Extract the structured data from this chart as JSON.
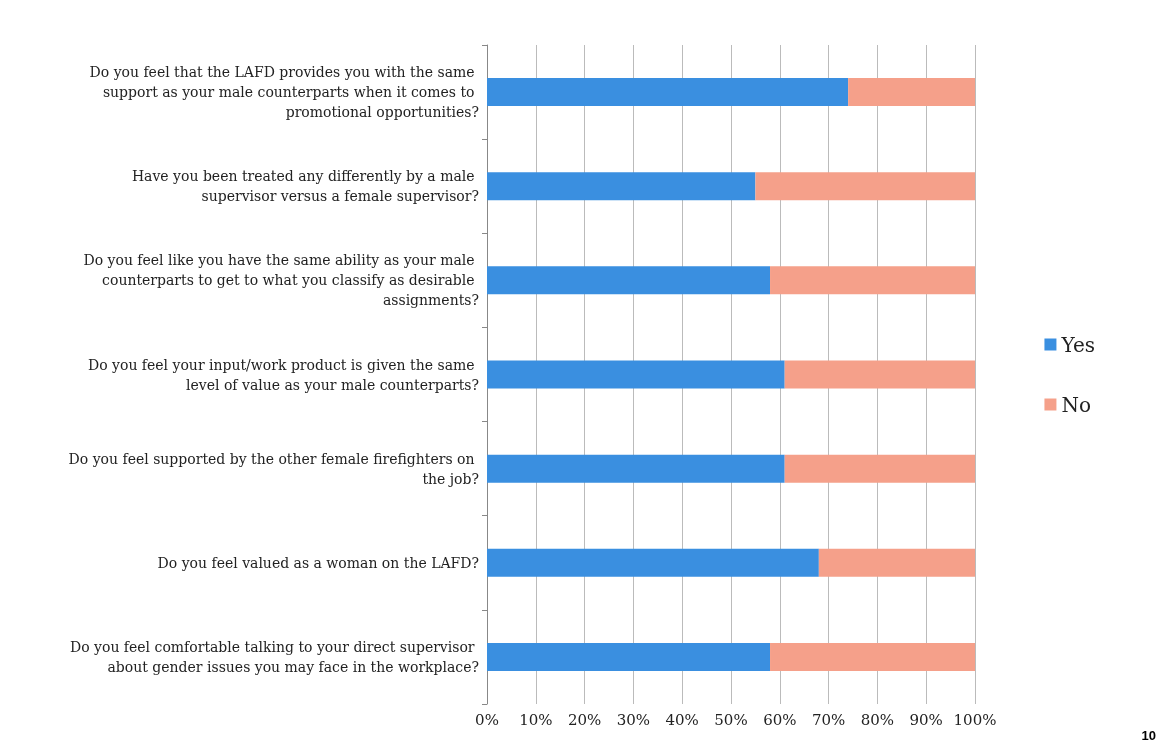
{
  "chart_data": {
    "type": "bar",
    "orientation": "horizontal",
    "stacked": true,
    "categories": [
      "Do you feel that the LAFD provides you with the same support as your male counterparts when it comes to promotional opportunities?",
      "Have you been treated any differently by a male supervisor versus a female supervisor?",
      "Do you feel like you have the same ability as your male counterparts to get to what you classify as desirable assignments?",
      "Do you feel your input/work product is given the same level of value as your male counterparts?",
      "Do you feel supported by the other female firefighters on the job?",
      "Do you feel valued as a woman on the LAFD?",
      "Do you feel comfortable talking to your direct supervisor about gender issues you may face in the workplace?"
    ],
    "series": [
      {
        "name": "Yes",
        "color": "#3a8fe0",
        "values": [
          74,
          55,
          58,
          61,
          61,
          68,
          58
        ]
      },
      {
        "name": "No",
        "color": "#f5a08a",
        "values": [
          26,
          45,
          42,
          39,
          39,
          32,
          42
        ]
      }
    ],
    "xlim": [
      0,
      100
    ],
    "xticks": [
      {
        "value": 0,
        "label": "0%"
      },
      {
        "value": 10,
        "label": "10%"
      },
      {
        "value": 20,
        "label": "20%"
      },
      {
        "value": 30,
        "label": "30%"
      },
      {
        "value": 40,
        "label": "40%"
      },
      {
        "value": 50,
        "label": "50%"
      },
      {
        "value": 60,
        "label": "60%"
      },
      {
        "value": 70,
        "label": "70%"
      },
      {
        "value": 80,
        "label": "80%"
      },
      {
        "value": 90,
        "label": "90%"
      },
      {
        "value": 100,
        "label": "100%"
      }
    ],
    "grid": "x",
    "legend": "right",
    "annotations": [
      "10"
    ]
  }
}
